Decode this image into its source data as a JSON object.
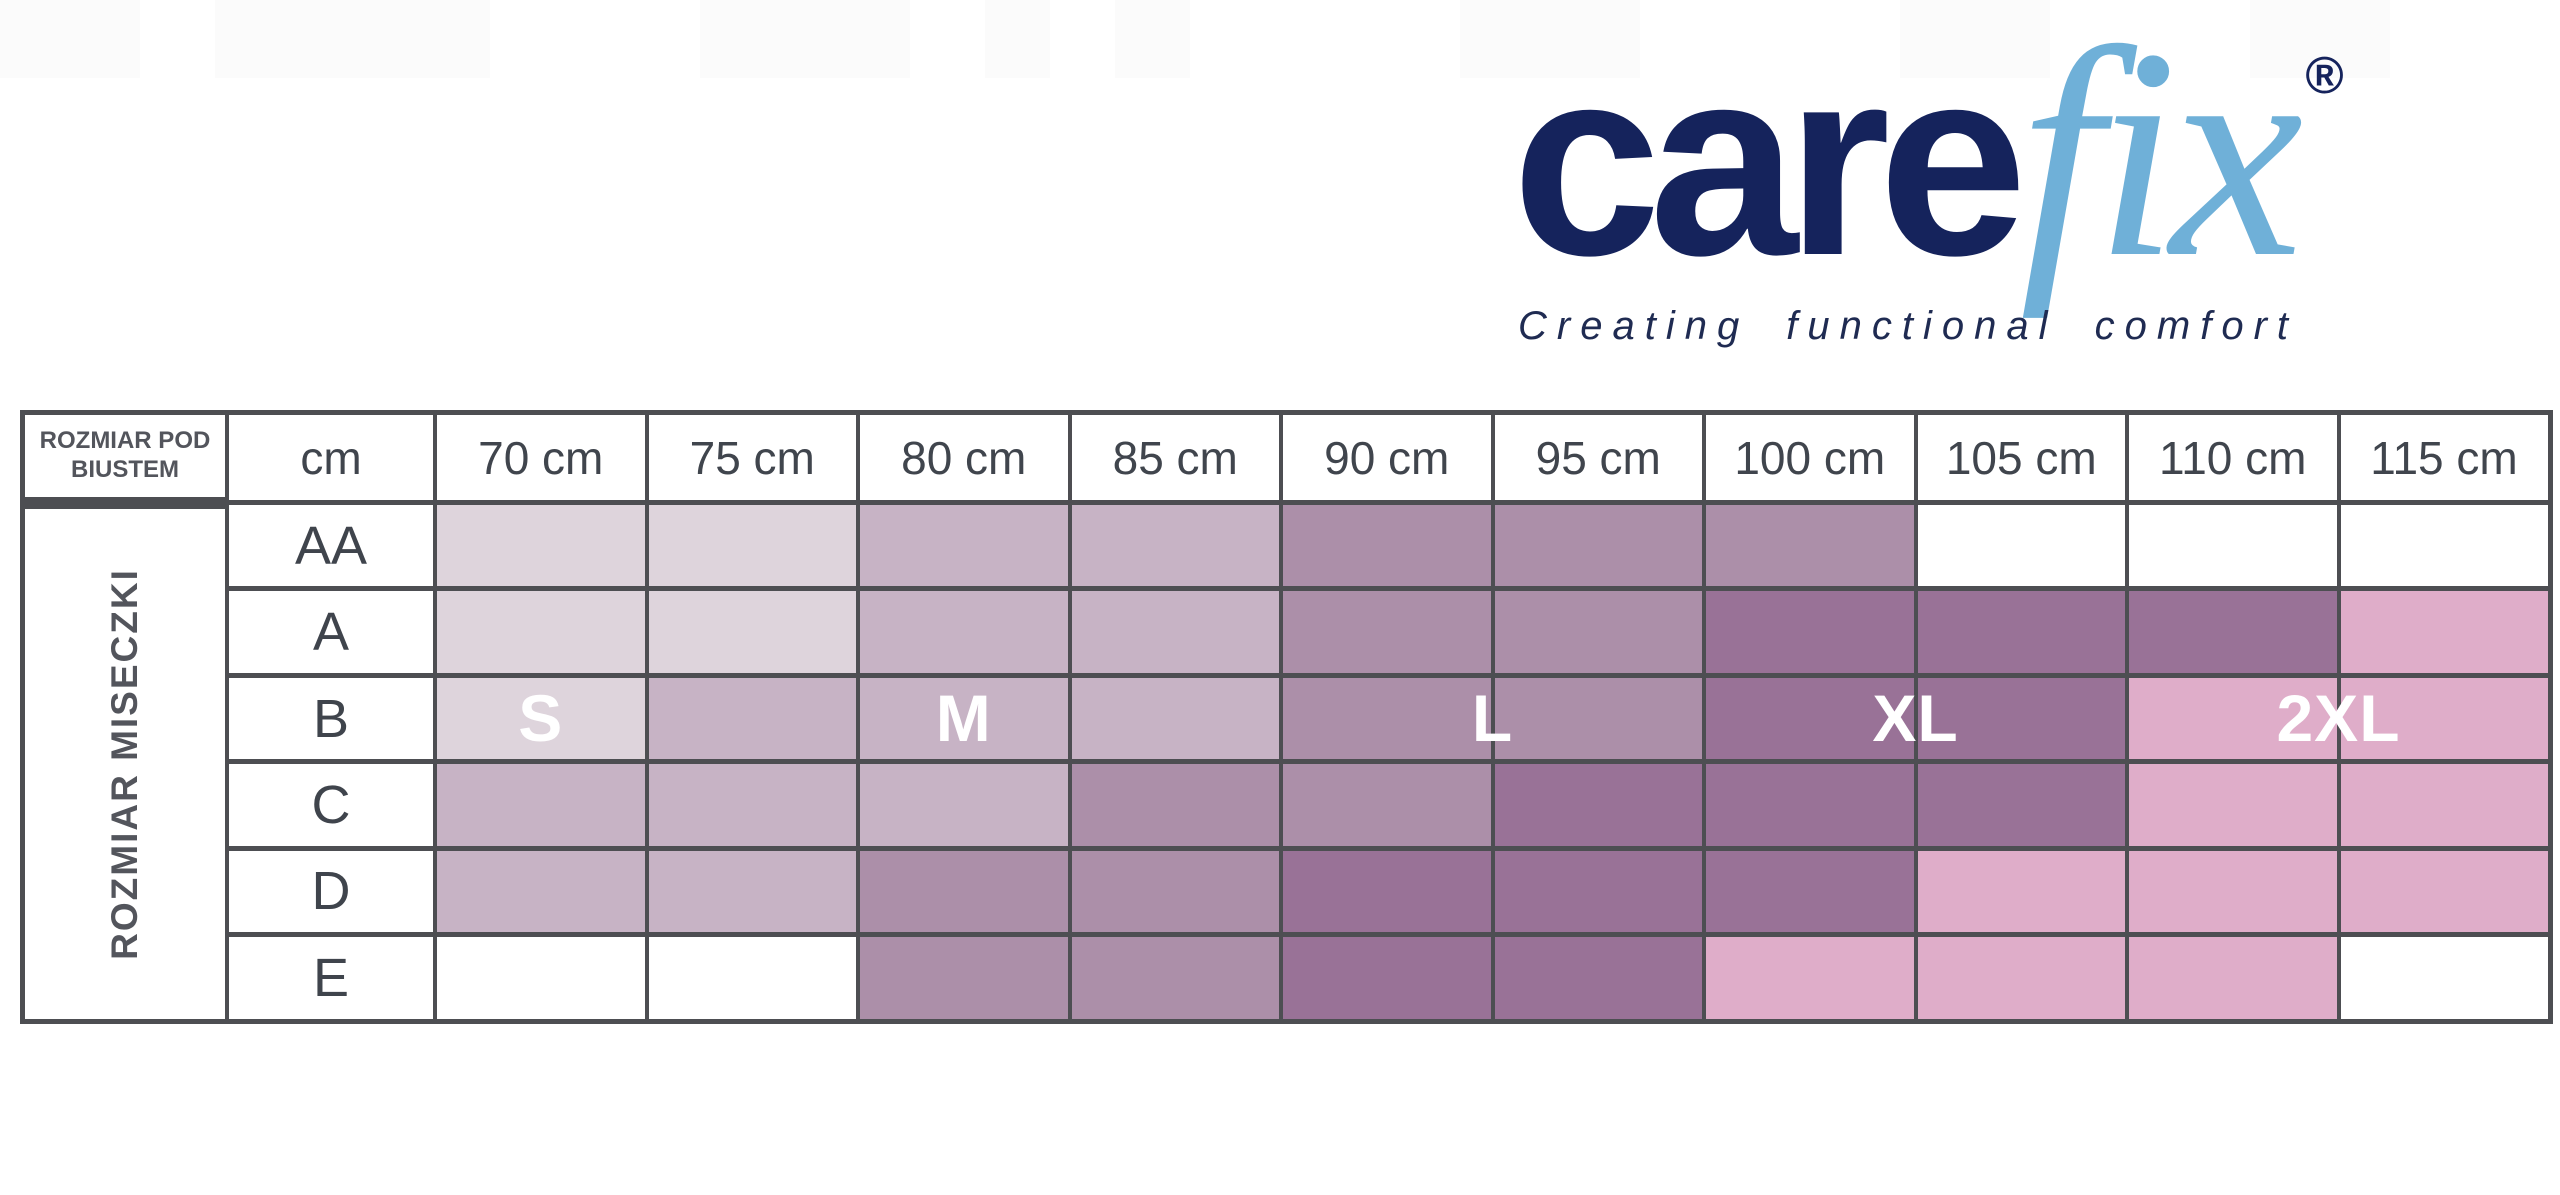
{
  "logo": {
    "brand_care": "care",
    "brand_fix": "fix",
    "registered_mark": "®",
    "tagline": "Creating functional comfort",
    "color_care": "#15235c",
    "color_fix": "#6fb0d8",
    "color_tagline": "#1f2b52"
  },
  "chart_data": {
    "type": "table",
    "title": "Carefix bra size chart",
    "corner_header": "ROZMIAR POD BIUSTEM",
    "row_axis_label": "ROZMIAR MISECZKI",
    "unit_header": "cm",
    "column_headers": [
      "70 cm",
      "75 cm",
      "80 cm",
      "85 cm",
      "90 cm",
      "95 cm",
      "100 cm",
      "105 cm",
      "110 cm",
      "115 cm"
    ],
    "row_headers": [
      "AA",
      "A",
      "B",
      "C",
      "D",
      "E"
    ],
    "palette": {
      "S": "#ded4dc",
      "M": "#c7b3c5",
      "L": "#ac8fa9",
      "XL": "#997297",
      "2XL": "#dfadc9",
      "empty": "#ffffff"
    },
    "grid_color": "#4d4e52",
    "cells": [
      [
        "S",
        "S",
        "M",
        "M",
        "L",
        "L",
        "L",
        "",
        "",
        ""
      ],
      [
        "S",
        "S",
        "M",
        "M",
        "L",
        "L",
        "XL",
        "XL",
        "XL",
        "2XL"
      ],
      [
        "S",
        "M",
        "M",
        "M",
        "L",
        "L",
        "XL",
        "XL",
        "2XL",
        "2XL"
      ],
      [
        "M",
        "M",
        "M",
        "L",
        "L",
        "XL",
        "XL",
        "XL",
        "2XL",
        "2XL"
      ],
      [
        "M",
        "M",
        "L",
        "L",
        "XL",
        "XL",
        "XL",
        "2XL",
        "2XL",
        "2XL"
      ],
      [
        "",
        "",
        "L",
        "L",
        "XL",
        "XL",
        "2XL",
        "2XL",
        "2XL",
        ""
      ]
    ],
    "size_zone_labels": [
      {
        "text": "S",
        "label_row": "B",
        "columns": [
          "70 cm"
        ]
      },
      {
        "text": "M",
        "label_row": "B",
        "columns": [
          "75 cm",
          "80 cm",
          "85 cm"
        ]
      },
      {
        "text": "L",
        "label_row": "B",
        "columns": [
          "90 cm",
          "95 cm"
        ]
      },
      {
        "text": "XL",
        "label_row": "B",
        "columns": [
          "100 cm",
          "105 cm"
        ]
      },
      {
        "text": "2XL",
        "label_row": "B",
        "columns": [
          "110 cm",
          "115 cm"
        ]
      }
    ],
    "legend_position": "in-table",
    "grid": true
  }
}
